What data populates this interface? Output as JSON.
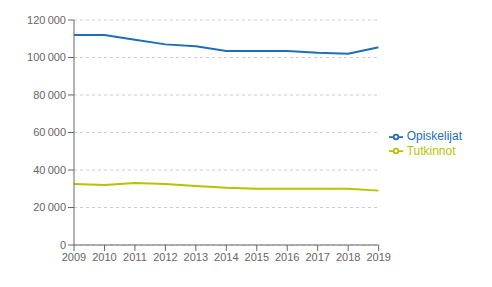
{
  "chart_data": {
    "type": "line",
    "x": [
      2009,
      2010,
      2011,
      2012,
      2013,
      2014,
      2015,
      2016,
      2017,
      2018,
      2019
    ],
    "xlim": [
      2009,
      2019
    ],
    "xticks": [
      2009,
      2010,
      2011,
      2012,
      2013,
      2014,
      2015,
      2016,
      2017,
      2018,
      2019
    ],
    "ylim": [
      0,
      120000
    ],
    "yticks": [
      0,
      {
        "value": 20000,
        "label": "20 000"
      },
      {
        "value": 40000,
        "label": "40 000"
      },
      {
        "value": 60000,
        "label": "60 000"
      },
      {
        "value": 80000,
        "label": "80 000"
      },
      {
        "value": 100000,
        "label": "100 000"
      },
      {
        "value": 120000,
        "label": "120 000"
      }
    ],
    "grid": true,
    "legend": "right",
    "series": [
      {
        "name": "Opiskelijat",
        "color": "#1f6eb5",
        "values": [
          112000,
          112000,
          109500,
          107000,
          106000,
          103500,
          103500,
          103500,
          102500,
          102000,
          105500
        ]
      },
      {
        "name": "Tutkinnot",
        "color": "#b5c400",
        "values": [
          32500,
          32000,
          33000,
          32500,
          31500,
          30500,
          30000,
          30000,
          30000,
          30000,
          29000
        ]
      }
    ]
  }
}
